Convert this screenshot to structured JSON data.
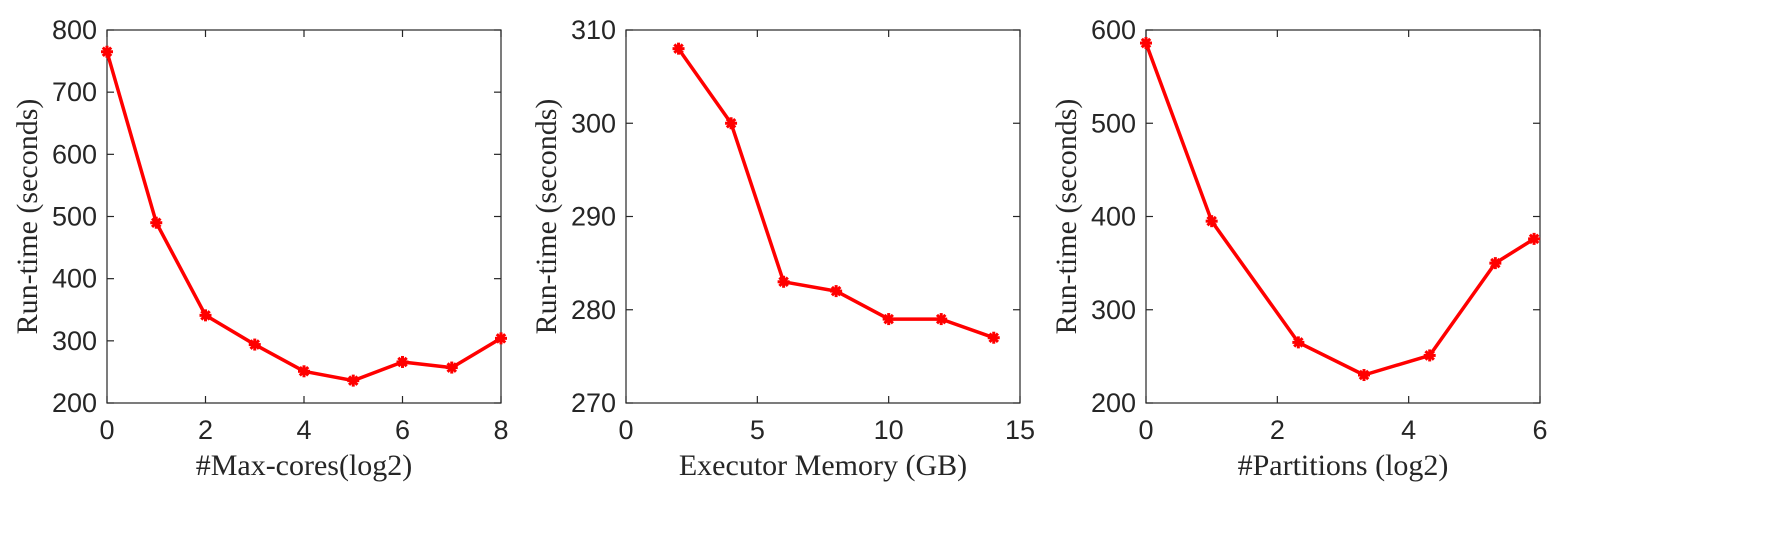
{
  "chart_data": [
    {
      "type": "line",
      "title": "",
      "xlabel": "#Max-cores(log2)",
      "ylabel": "Run-time (seconds)",
      "xlim": [
        0,
        8
      ],
      "ylim": [
        200,
        800
      ],
      "xticks": [
        0,
        2,
        4,
        6,
        8
      ],
      "yticks": [
        200,
        300,
        400,
        500,
        600,
        700,
        800
      ],
      "grid": false,
      "color": "#ff0000",
      "x": [
        0,
        1,
        2,
        3,
        4,
        5,
        6,
        7,
        8
      ],
      "y": [
        765,
        490,
        341,
        294,
        251,
        236,
        266,
        257,
        304
      ]
    },
    {
      "type": "line",
      "title": "",
      "xlabel": "Executor Memory (GB)",
      "ylabel": "Run-time (seconds)",
      "xlim": [
        0,
        15
      ],
      "ylim": [
        270,
        310
      ],
      "xticks": [
        0,
        5,
        10,
        15
      ],
      "yticks": [
        270,
        280,
        290,
        300,
        310
      ],
      "grid": false,
      "color": "#ff0000",
      "x": [
        2,
        4,
        6,
        8,
        10,
        12,
        14
      ],
      "y": [
        308,
        300,
        283,
        282,
        279,
        279,
        277
      ]
    },
    {
      "type": "line",
      "title": "",
      "xlabel": "#Partitions (log2)",
      "ylabel": "Run-time (seconds)",
      "xlim": [
        0,
        6
      ],
      "ylim": [
        200,
        600
      ],
      "xticks": [
        0,
        2,
        4,
        6
      ],
      "yticks": [
        200,
        300,
        400,
        500,
        600
      ],
      "grid": false,
      "color": "#ff0000",
      "x": [
        0,
        1,
        2.32,
        3.32,
        4.32,
        5.32,
        5.91
      ],
      "y": [
        586,
        395,
        265,
        230,
        251,
        350,
        376
      ]
    }
  ]
}
